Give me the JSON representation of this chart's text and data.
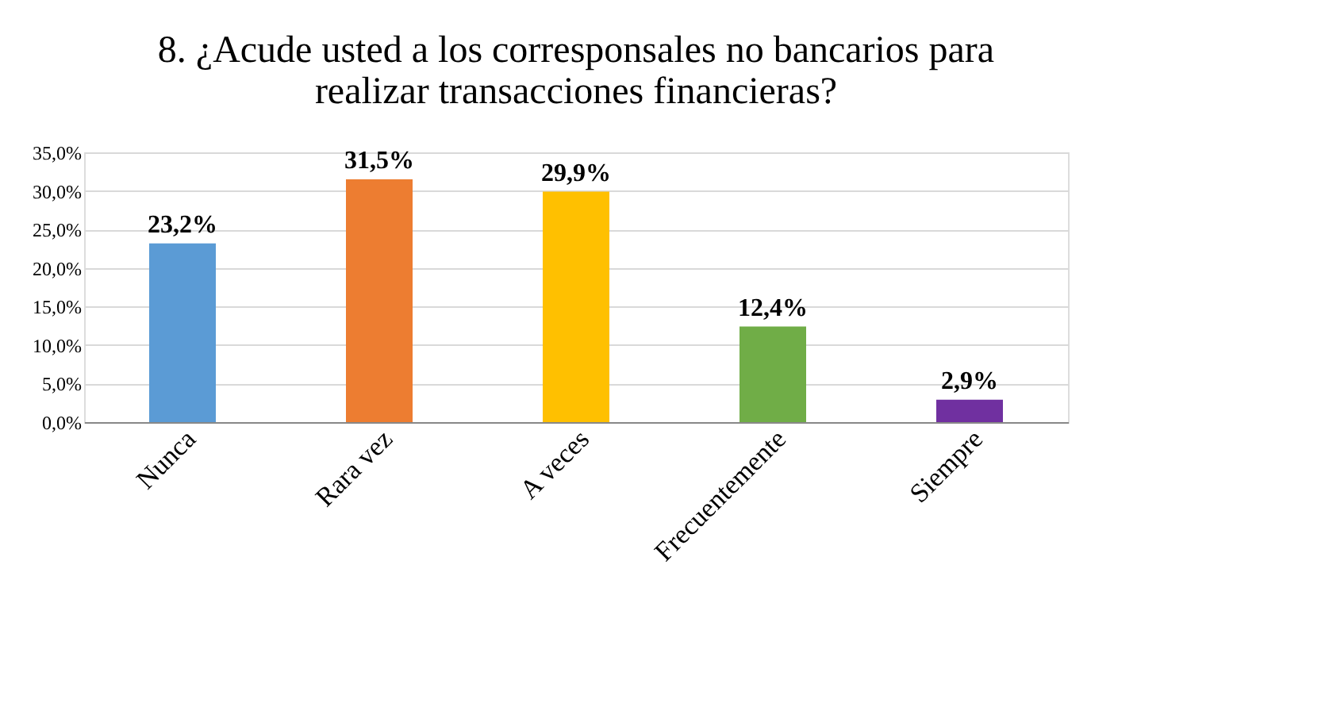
{
  "chart_data": {
    "type": "bar",
    "title": [
      "8. ¿Acude usted a los corresponsales no bancarios para",
      "realizar transacciones financieras?"
    ],
    "categories": [
      "Nunca",
      "Rara vez",
      "A veces",
      "Frecuentemente",
      "Siempre"
    ],
    "values": [
      23.2,
      31.5,
      29.9,
      12.4,
      2.9
    ],
    "colors": [
      "#5b9bd5",
      "#ed7d31",
      "#ffc000",
      "#70ad47",
      "#7030a0"
    ],
    "value_labels": [
      "23,2%",
      "31,5%",
      "29,9%",
      "12,4%",
      "2,9%"
    ],
    "ylim": [
      0,
      35
    ],
    "yticks": [
      {
        "value": 0,
        "label": "0,0%"
      },
      {
        "value": 5,
        "label": "5,0%"
      },
      {
        "value": 10,
        "label": "10,0%"
      },
      {
        "value": 15,
        "label": "15,0%"
      },
      {
        "value": 20,
        "label": "20,0%"
      },
      {
        "value": 25,
        "label": "25,0%"
      },
      {
        "value": 30,
        "label": "30,0%"
      },
      {
        "value": 35,
        "label": "35,0%"
      }
    ],
    "grid": "y",
    "legend": false
  }
}
